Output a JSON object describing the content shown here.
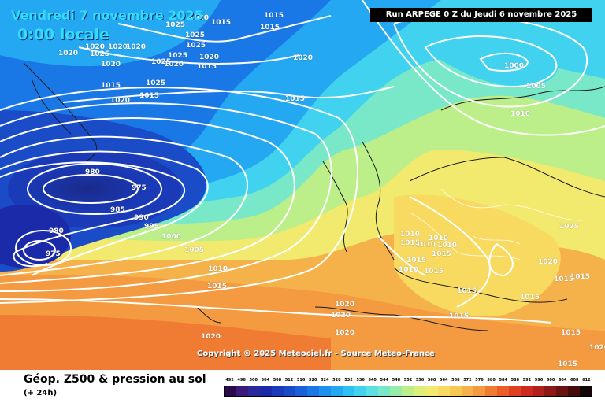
{
  "header": {
    "date": "Vendredi 7 novembre 2025",
    "time": "0:00 locale",
    "run": "Run ARPEGE 0 Z du Jeudi 6 novembre 2025"
  },
  "copyright": "Copyright © 2025 Meteociel.fr - Source Meteo-France",
  "footer": {
    "title": "Géop. Z500 & pression au sol",
    "subtitle": "(+ 24h)"
  },
  "legend": {
    "values": [
      "492",
      "496",
      "500",
      "504",
      "508",
      "512",
      "516",
      "520",
      "524",
      "528",
      "532",
      "536",
      "540",
      "544",
      "548",
      "552",
      "556",
      "560",
      "564",
      "568",
      "572",
      "576",
      "580",
      "584",
      "588",
      "592",
      "596",
      "600",
      "604",
      "608",
      "612"
    ],
    "colors": [
      "#2a0a4a",
      "#3a1a7a",
      "#2a2a9a",
      "#1a2aa8",
      "#1a3ab8",
      "#1a4cc8",
      "#1a60d8",
      "#1a78e6",
      "#1e90ee",
      "#24a8f2",
      "#2ec0f2",
      "#40d2ee",
      "#5ae0e0",
      "#78e8c8",
      "#98ecaa",
      "#bcee8a",
      "#dcef78",
      "#f2ea6e",
      "#f8da60",
      "#f8c854",
      "#f6b24a",
      "#f49a40",
      "#f07c34",
      "#ea5e28",
      "#e04020",
      "#cc2a1e",
      "#b0201c",
      "#8e1818",
      "#6a1212",
      "#440c0c",
      "#120606"
    ]
  },
  "pressure_labels": [
    "1025",
    "1025",
    "1015",
    "1015",
    "1020",
    "1020",
    "1025",
    "1020",
    "1020",
    "1015",
    "1020",
    "1025",
    "1025",
    "1020",
    "1025",
    "1020",
    "1015",
    "1020",
    "1025",
    "1015",
    "1020",
    "1015",
    "1020",
    "1000",
    "1005",
    "1010",
    "1015",
    "980",
    "975",
    "985",
    "990",
    "995",
    "1000",
    "980",
    "975",
    "1005",
    "1010",
    "1015",
    "1020",
    "1025",
    "1010",
    "1010",
    "1015",
    "1010",
    "1015",
    "1010",
    "1015",
    "1010",
    "1015",
    "1020",
    "1015",
    "1015",
    "1015",
    "1020",
    "1020",
    "1015",
    "1015",
    "1020",
    "1020",
    "1015",
    "1015"
  ]
}
